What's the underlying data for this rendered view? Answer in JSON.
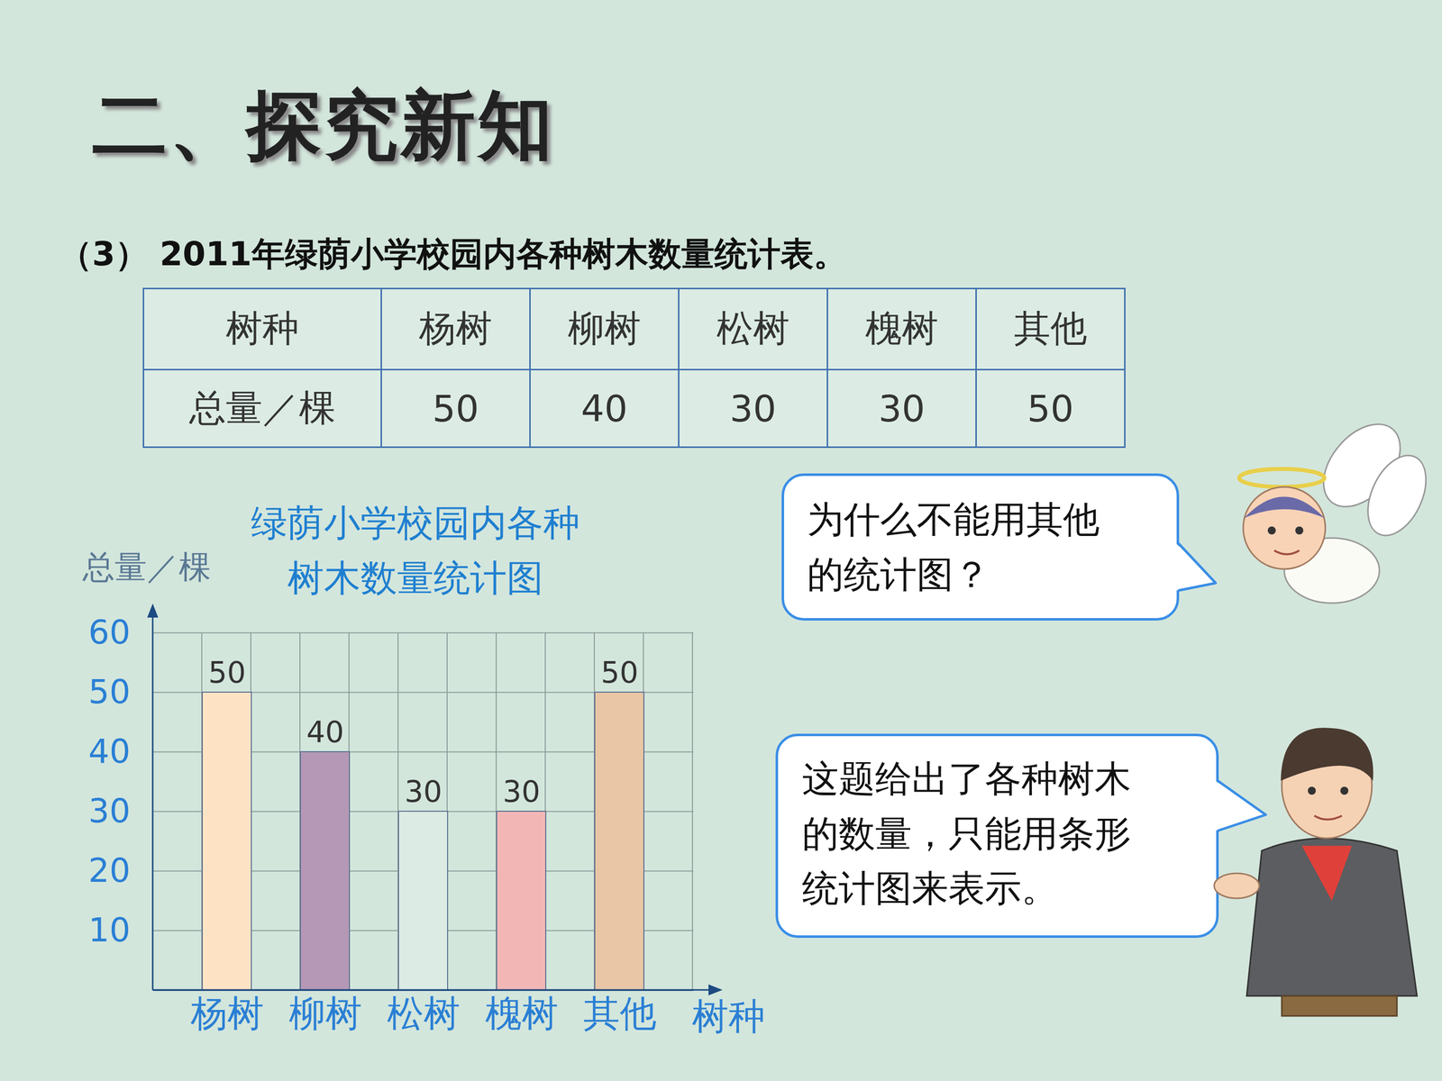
{
  "header": {
    "title": "二、探究新知"
  },
  "table": {
    "caption": "（3） 2011年绿荫小学校园内各种树木数量统计表。",
    "rows": [
      [
        "树种",
        "杨树",
        "柳树",
        "松树",
        "槐树",
        "其他"
      ],
      [
        "总量／棵",
        50,
        40,
        30,
        30,
        50
      ]
    ]
  },
  "chart_data": {
    "type": "bar",
    "title": "绿荫小学校园内各种树木数量统计图",
    "x_label": "树种",
    "y_label": "总量／棵",
    "categories": [
      "杨树",
      "柳树",
      "松树",
      "槐树",
      "其他"
    ],
    "values": [
      50,
      40,
      30,
      30,
      50
    ],
    "colors": [
      "#fde3c4",
      "#b498b6",
      "#dcebe3",
      "#f2b7b5",
      "#e8c6a6"
    ],
    "ylim": [
      0,
      60
    ],
    "yticks": [
      10,
      20,
      30,
      40,
      50,
      60
    ],
    "grid": true,
    "data_labels": true
  },
  "bubbles": [
    {
      "text": "为什么不能用其他的统计图？"
    },
    {
      "text": "这题给出了各种树木的数量，只能用条形统计图来表示。"
    }
  ]
}
